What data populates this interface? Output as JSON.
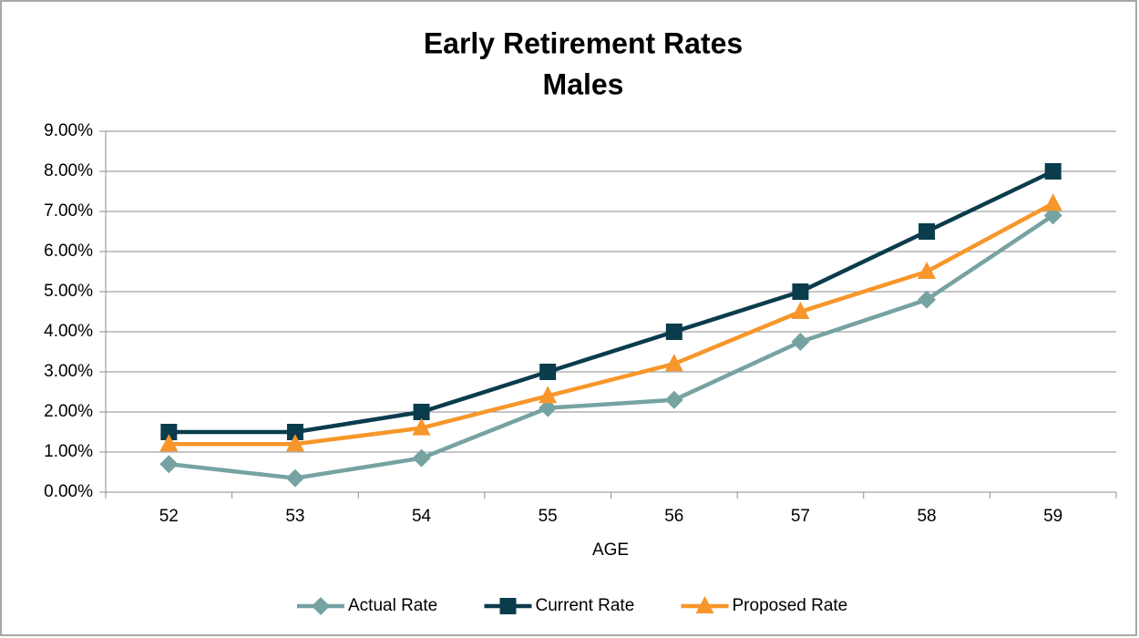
{
  "chart_data": {
    "type": "line",
    "title": "Early Retirement Rates",
    "subtitle": "Males",
    "x_label": "AGE",
    "categories": [
      "52",
      "53",
      "54",
      "55",
      "56",
      "57",
      "58",
      "59"
    ],
    "series": [
      {
        "name": "Actual Rate",
        "color": "#76a2a2",
        "marker": "diamond",
        "values": [
          0.7,
          0.35,
          0.85,
          2.1,
          2.3,
          3.75,
          4.8,
          6.9
        ]
      },
      {
        "name": "Current Rate",
        "color": "#0a3c4c",
        "marker": "square",
        "values": [
          1.5,
          1.5,
          2,
          3,
          4,
          5,
          6.5,
          8
        ]
      },
      {
        "name": "Proposed Rate",
        "color": "#f7962a",
        "marker": "triangle",
        "values": [
          1.2,
          1.2,
          1.6,
          2.4,
          3.2,
          4.5,
          5.5,
          7.2
        ]
      }
    ],
    "ylim": [
      0,
      9
    ],
    "yticks": [
      {
        "value": 0,
        "label": "0.00%"
      },
      {
        "value": 1,
        "label": "1.00%"
      },
      {
        "value": 2,
        "label": "2.00%"
      },
      {
        "value": 3,
        "label": "3.00%"
      },
      {
        "value": 4,
        "label": "4.00%"
      },
      {
        "value": 5,
        "label": "5.00%"
      },
      {
        "value": 6,
        "label": "6.00%"
      },
      {
        "value": 7,
        "label": "7.00%"
      },
      {
        "value": 8,
        "label": "8.00%"
      },
      {
        "value": 9,
        "label": "9.00%"
      }
    ],
    "grid": true,
    "legend": "bottom"
  }
}
